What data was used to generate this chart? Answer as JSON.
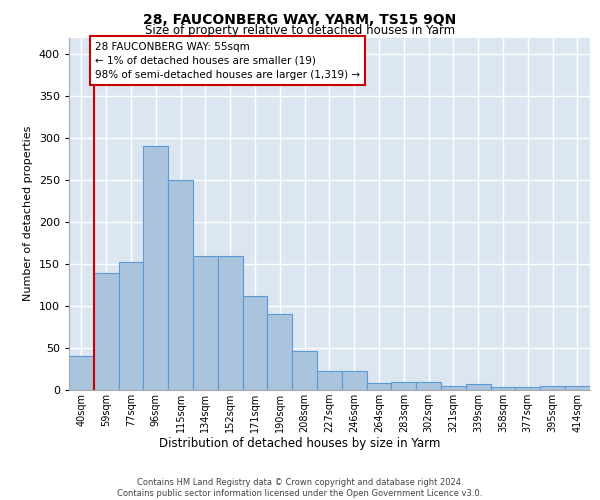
{
  "title": "28, FAUCONBERG WAY, YARM, TS15 9QN",
  "subtitle": "Size of property relative to detached houses in Yarm",
  "xlabel": "Distribution of detached houses by size in Yarm",
  "ylabel": "Number of detached properties",
  "footer_line1": "Contains HM Land Registry data © Crown copyright and database right 2024.",
  "footer_line2": "Contains public sector information licensed under the Open Government Licence v3.0.",
  "categories": [
    "40sqm",
    "59sqm",
    "77sqm",
    "96sqm",
    "115sqm",
    "134sqm",
    "152sqm",
    "171sqm",
    "190sqm",
    "208sqm",
    "227sqm",
    "246sqm",
    "264sqm",
    "283sqm",
    "302sqm",
    "321sqm",
    "339sqm",
    "358sqm",
    "377sqm",
    "395sqm",
    "414sqm"
  ],
  "values": [
    40,
    140,
    153,
    291,
    250,
    160,
    160,
    112,
    91,
    46,
    23,
    23,
    8,
    10,
    10,
    5,
    7,
    3,
    3,
    5,
    5
  ],
  "bar_color": "#aac4de",
  "bar_edge_color": "#5b9bd5",
  "background_color": "#ffffff",
  "plot_bg_color": "#dce6f1",
  "grid_color": "#ffffff",
  "annotation_line1": "28 FAUCONBERG WAY: 55sqm",
  "annotation_line2": "← 1% of detached houses are smaller (19)",
  "annotation_line3": "98% of semi-detached houses are larger (1,319) →",
  "annotation_box_edge": "#cc0000",
  "ylim": [
    0,
    420
  ],
  "yticks": [
    0,
    50,
    100,
    150,
    200,
    250,
    300,
    350,
    400
  ]
}
